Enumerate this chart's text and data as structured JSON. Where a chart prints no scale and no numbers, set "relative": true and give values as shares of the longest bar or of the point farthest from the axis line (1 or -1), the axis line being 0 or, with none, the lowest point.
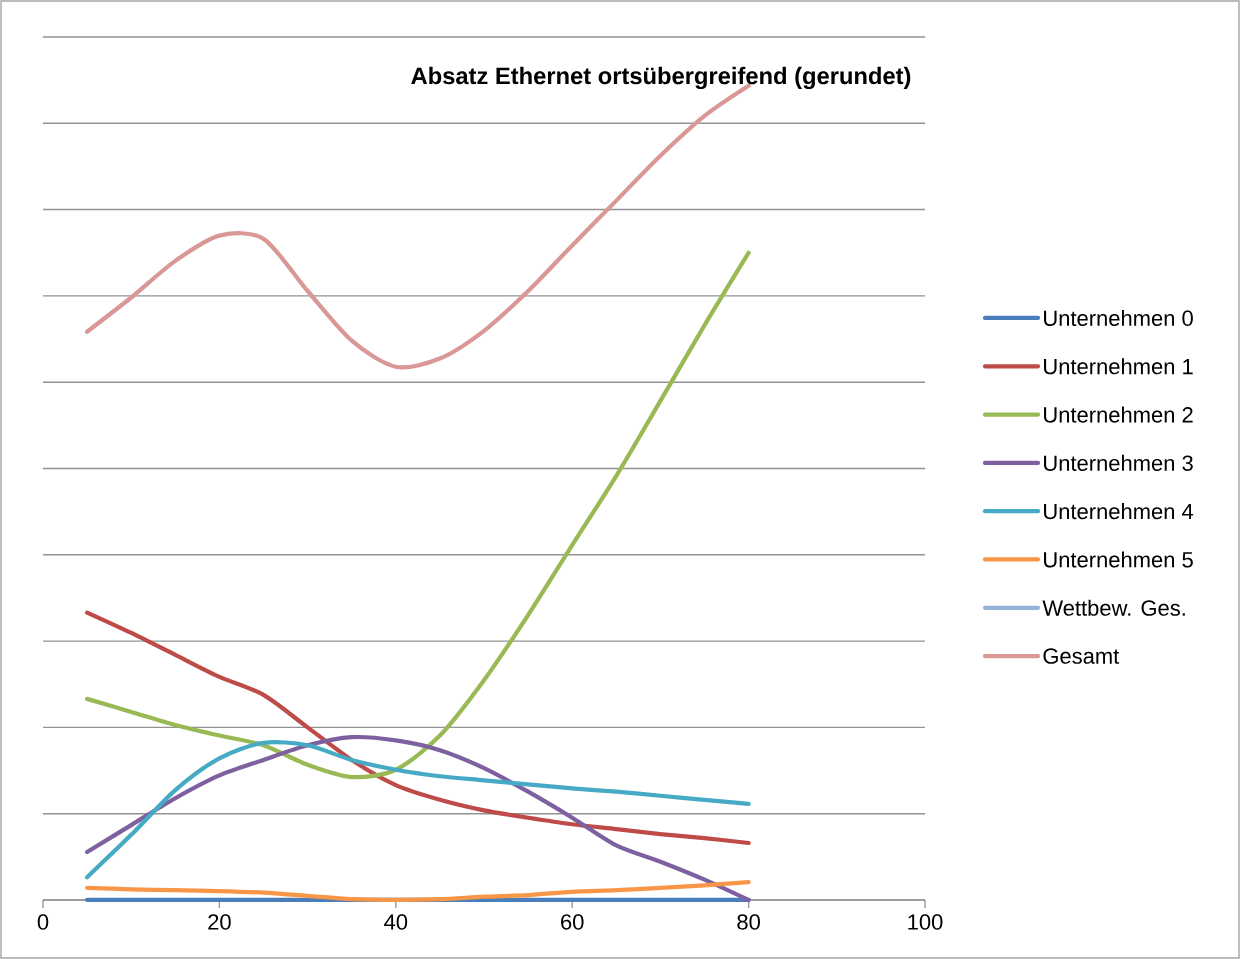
{
  "chart_data": {
    "type": "line",
    "title": "Absatz Ethernet ortsübergreifend (gerundet)",
    "relative": true,
    "x": [
      5,
      10,
      15,
      20,
      25,
      30,
      35,
      40,
      45,
      50,
      55,
      60,
      65,
      70,
      75,
      80
    ],
    "xlim": [
      0,
      100
    ],
    "xticks": [
      0,
      20,
      40,
      60,
      80,
      100
    ],
    "tick_labels": "x",
    "grid": "y",
    "legend": "right",
    "marker": "none",
    "line_style": "solid",
    "series": [
      {
        "name": "Unternehmen 0",
        "color": "#4a7ebb",
        "values": [
          0,
          0,
          0,
          0,
          0,
          0,
          0,
          0,
          0,
          0,
          0,
          0,
          0,
          0,
          0,
          0
        ]
      },
      {
        "name": "Unternehmen 1",
        "color": "#be4b48",
        "values": [
          0.353,
          0.328,
          0.301,
          0.274,
          0.252,
          0.212,
          0.172,
          0.141,
          0.123,
          0.11,
          0.101,
          0.093,
          0.087,
          0.081,
          0.076,
          0.07
        ]
      },
      {
        "name": "Unternehmen 2",
        "color": "#98b954",
        "values": [
          0.247,
          0.231,
          0.215,
          0.202,
          0.19,
          0.166,
          0.151,
          0.16,
          0.202,
          0.27,
          0.35,
          0.436,
          0.521,
          0.613,
          0.706,
          0.795
        ]
      },
      {
        "name": "Unternehmen 3",
        "color": "#7d60a0",
        "values": [
          0.059,
          0.092,
          0.125,
          0.153,
          0.172,
          0.19,
          0.2,
          0.196,
          0.184,
          0.162,
          0.133,
          0.101,
          0.067,
          0.047,
          0.025,
          0
        ]
      },
      {
        "name": "Unternehmen 4",
        "color": "#46aac5",
        "values": [
          0.028,
          0.08,
          0.135,
          0.174,
          0.193,
          0.19,
          0.172,
          0.16,
          0.152,
          0.147,
          0.142,
          0.137,
          0.133,
          0.128,
          0.123,
          0.118
        ]
      },
      {
        "name": "Unternehmen 5",
        "color": "#f79646",
        "values": [
          0.015,
          0.013,
          0.012,
          0.011,
          0.009,
          0.005,
          0.001,
          0,
          0.001,
          0.004,
          0.006,
          0.01,
          0.012,
          0.015,
          0.018,
          0.022
        ]
      },
      {
        "name": "Wettbew. Ges.",
        "color": "#95b3d7",
        "values": [
          null,
          null,
          null,
          null,
          null,
          null,
          null,
          null,
          null,
          null,
          null,
          null,
          null,
          null,
          null,
          null
        ]
      },
      {
        "name": "Gesamt",
        "color": "#d99795",
        "values": [
          0.698,
          0.74,
          0.785,
          0.816,
          0.812,
          0.748,
          0.687,
          0.655,
          0.665,
          0.699,
          0.748,
          0.804,
          0.859,
          0.914,
          0.963,
          1.0
        ]
      }
    ]
  }
}
